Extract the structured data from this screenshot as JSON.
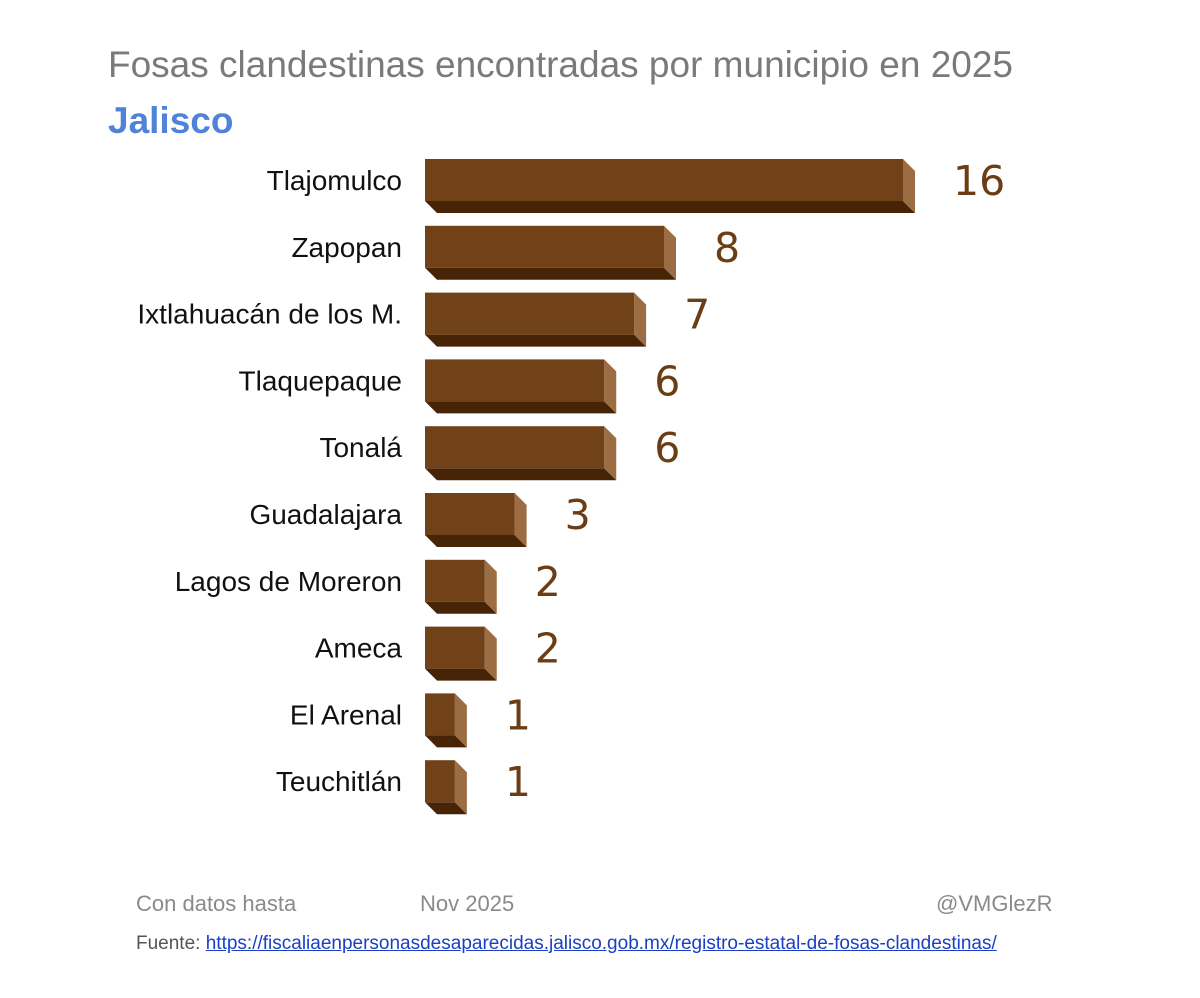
{
  "header": {
    "title": "Fosas clandestinas encontradas por municipio en 2025",
    "subtitle": "Jalisco"
  },
  "footer": {
    "data_label": "Con datos hasta",
    "data_date": "Nov 2025",
    "author": "@VMGlezR",
    "source_label": "Fuente:",
    "source_link": "https://fiscaliaenpersonasdesaparecidas.jalisco.gob.mx/registro-estatal-de-fosas-clandestinas/"
  },
  "colors": {
    "bar_front": "#714118",
    "bar_side": "#9c6d42",
    "bar_bottom": "#472406",
    "value_label": "#6b3d14",
    "title": "#7a7a7a",
    "subtitle": "#4f82d8"
  },
  "chart_data": {
    "type": "bar",
    "orientation": "horizontal",
    "style": "3d",
    "title": "Fosas clandestinas encontradas por municipio en 2025",
    "subtitle": "Jalisco",
    "categories": [
      "Tlajomulco",
      "Zapopan",
      "Ixtlahuacán de los M.",
      "Tlaquepaque",
      "Tonalá",
      "Guadalajara",
      "Lagos de Moreron",
      "Ameca",
      "El Arenal",
      "Teuchitlán"
    ],
    "values": [
      16,
      8,
      7,
      6,
      6,
      3,
      2,
      2,
      1,
      1
    ],
    "data_labels": true,
    "grid": false,
    "legend": "none"
  }
}
